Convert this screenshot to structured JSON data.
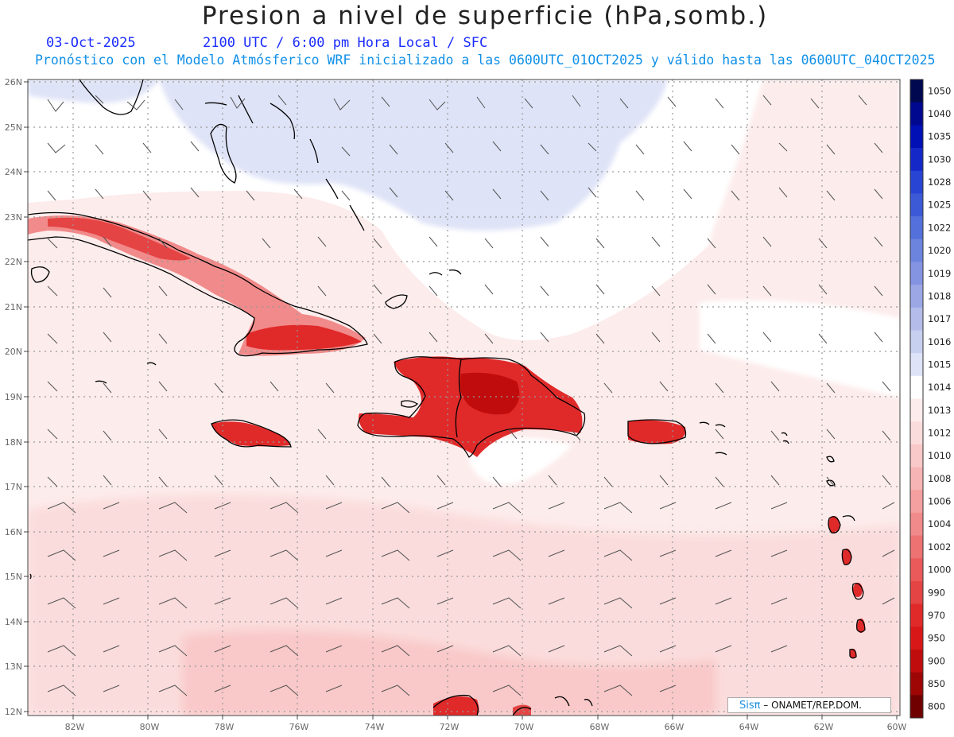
{
  "header": {
    "title": "Presion a nivel de superficie (hPa,somb.)",
    "date": "03-Oct-2025",
    "time": "2100 UTC / 6:00 pm Hora Local / SFC",
    "model": "Pronóstico con el Modelo Atmósferico WRF inicializado a las 0600UTC_01OCT2025 y válido hasta las  0600UTC_04OCT2025"
  },
  "map": {
    "lon_labels": [
      "82W",
      "80W",
      "78W",
      "76W",
      "74W",
      "72W",
      "70W",
      "68W",
      "66W",
      "64W",
      "62W",
      "60W"
    ],
    "lat_labels": [
      "26N",
      "25N",
      "24N",
      "23N",
      "22N",
      "21N",
      "20N",
      "19N",
      "18N",
      "17N",
      "16N",
      "15N",
      "14N",
      "13N",
      "12N"
    ],
    "extent": {
      "lon_min": -83.2,
      "lon_max": -60,
      "lat_min": 11.8,
      "lat_max": 26
    }
  },
  "colorbar": {
    "levels": [
      "1050",
      "1040",
      "1035",
      "1030",
      "1028",
      "1025",
      "1022",
      "1020",
      "1019",
      "1018",
      "1017",
      "1016",
      "1015",
      "1014",
      "1013",
      "1012",
      "1010",
      "1008",
      "1006",
      "1004",
      "1002",
      "1000",
      "990",
      "970",
      "950",
      "900",
      "850",
      "800"
    ],
    "colors": [
      "#000850",
      "#000890",
      "#0010b4",
      "#1428c8",
      "#2844d2",
      "#3c5ad6",
      "#5470da",
      "#6c84de",
      "#8494e2",
      "#9ca8e6",
      "#b4bcea",
      "#c8d0f0",
      "#dfe3f7",
      "#ffffff",
      "#fdecec",
      "#fbdcdc",
      "#f9c8c8",
      "#f6b4b4",
      "#f4a0a0",
      "#f18a8a",
      "#ee7272",
      "#ea5a5a",
      "#e54444",
      "#e02a2a",
      "#d81818",
      "#c00c0c",
      "#9e0606",
      "#700000"
    ]
  },
  "credit": {
    "logo": "Sisπ",
    "text": " – ONAMET/REP.DOM."
  }
}
